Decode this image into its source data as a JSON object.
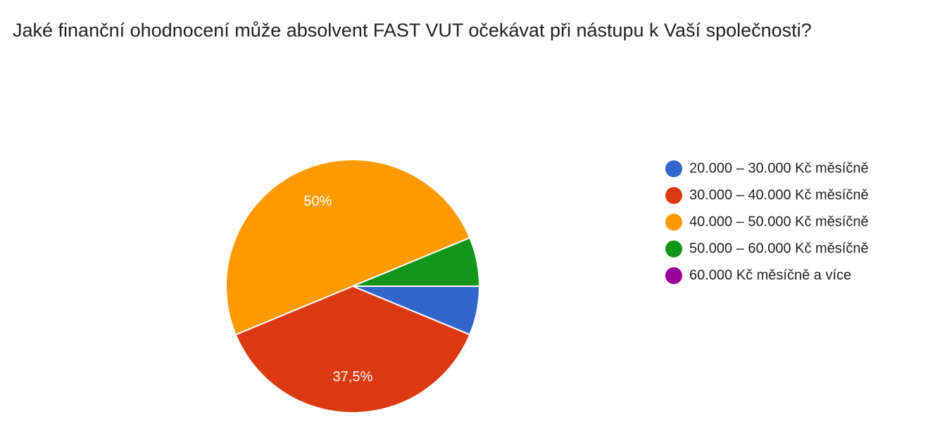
{
  "chart_data": {
    "type": "pie",
    "title": "Jaké finanční ohodnocení může absolvent FAST VUT očekávat při nástupu k Vaší společnosti?",
    "categories": [
      "20.000 – 30.000 Kč měsíčně",
      "30.000 – 40.000 Kč měsíčně",
      "40.000 – 50.000 Kč měsíčně",
      "50.000 – 60.000 Kč měsíčně",
      "60.000 Kč měsíčně a více"
    ],
    "values": [
      6.25,
      37.5,
      50,
      6.25,
      0
    ],
    "value_labels": [
      null,
      "37,5%",
      "50%",
      null,
      null
    ],
    "colors": [
      "#3366cc",
      "#dc3912",
      "#ff9900",
      "#109618",
      "#990099"
    ]
  }
}
